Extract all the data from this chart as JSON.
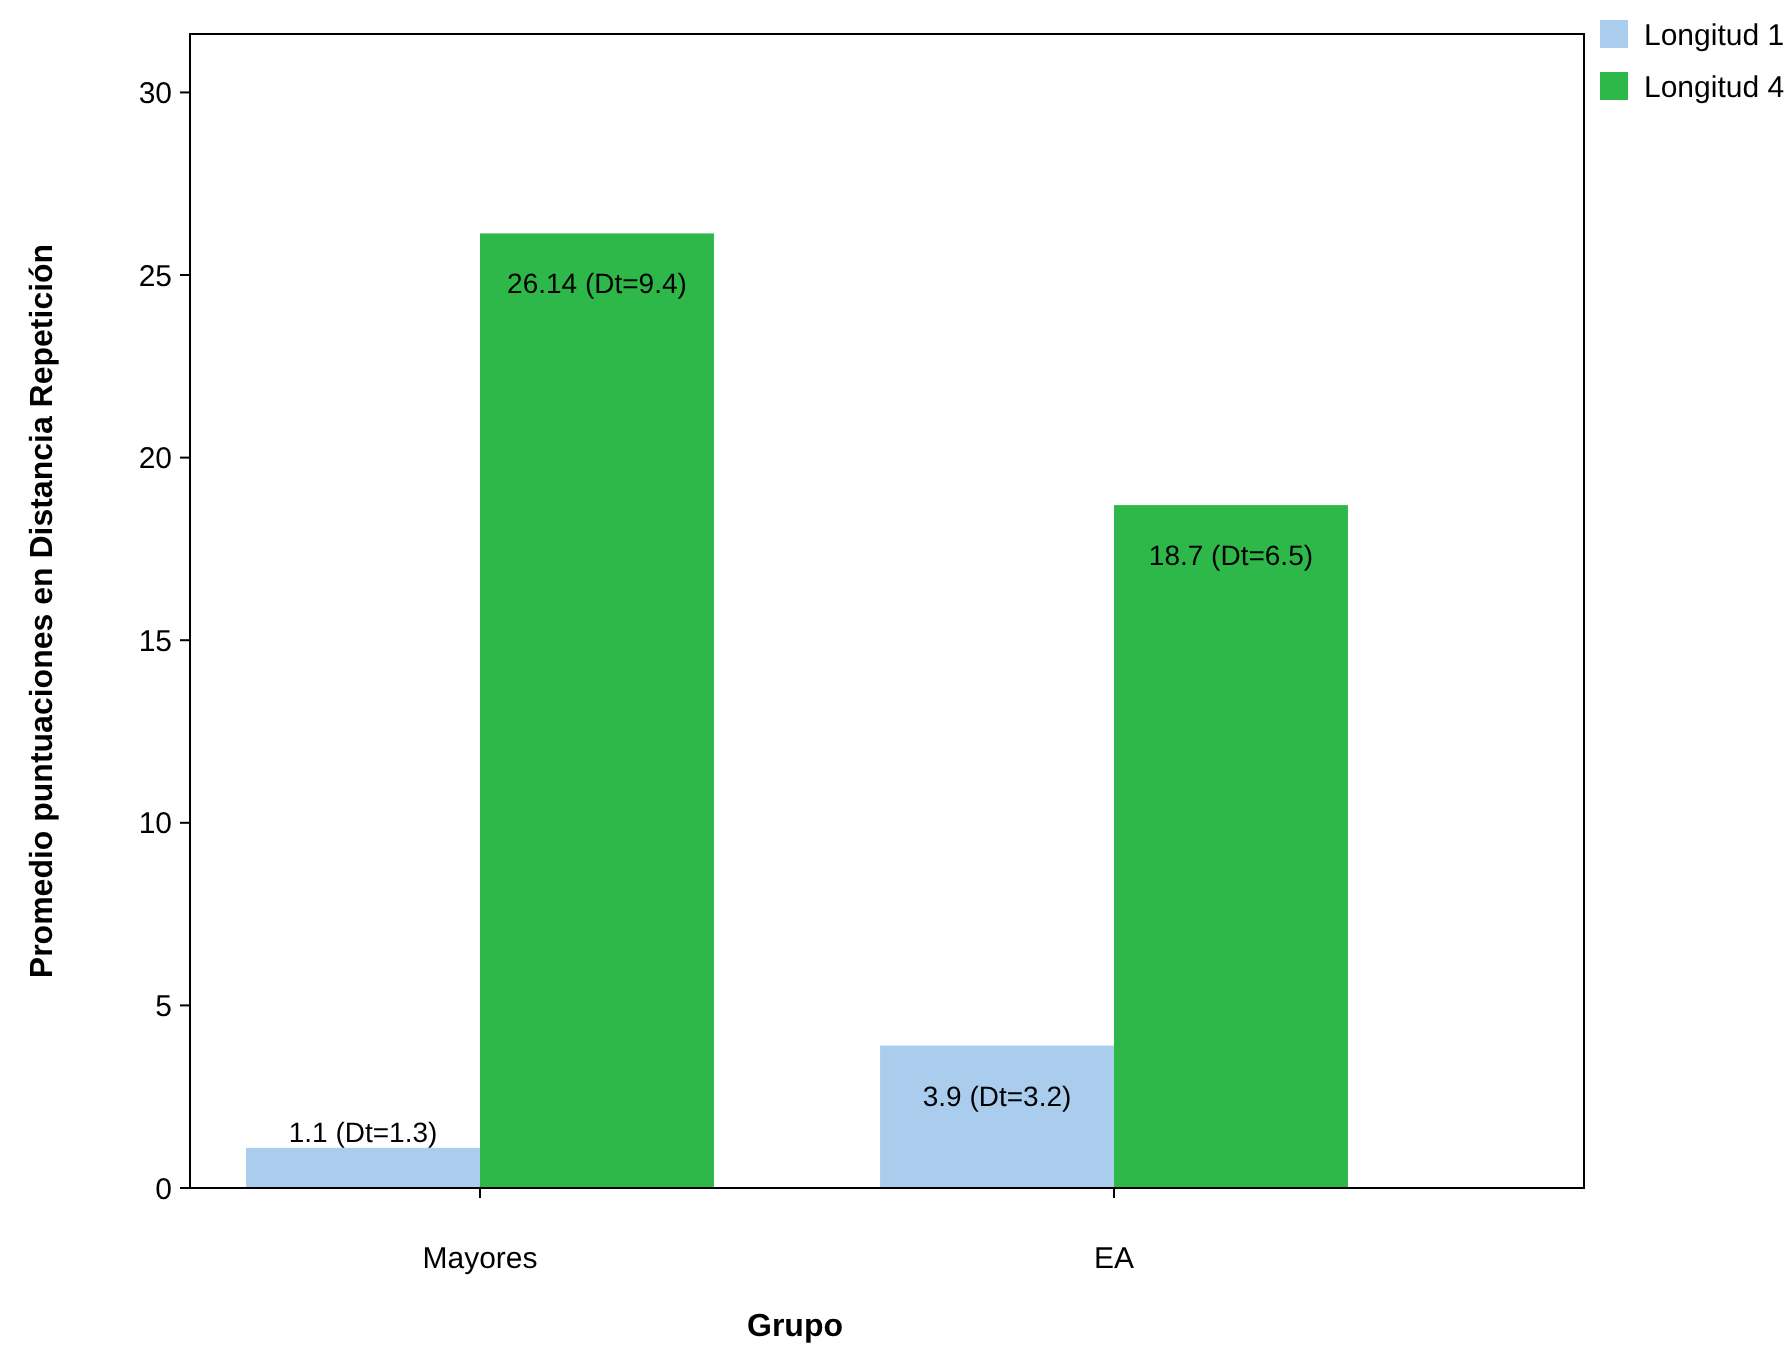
{
  "chart_data": {
    "type": "bar",
    "xlabel": "Grupo",
    "ylabel": "Promedio puntuaciones en Distancia Repetición",
    "categories": [
      "Mayores",
      "EA"
    ],
    "series": [
      {
        "name": "Longitud 1",
        "color": "#aacdee",
        "values": [
          1.1,
          3.9
        ],
        "value_labels": [
          "1.1 (Dt=1.3)",
          "3.9 (Dt=3.2)"
        ]
      },
      {
        "name": "Longitud 4",
        "color": "#2eb84a",
        "values": [
          26.14,
          18.7
        ],
        "value_labels": [
          "26.14 (Dt=9.4)",
          "18.7 (Dt=6.5)"
        ]
      }
    ],
    "ylim": [
      0,
      31.6
    ],
    "yticks": [
      0,
      5,
      10,
      15,
      20,
      25,
      30
    ],
    "legend": "top right"
  }
}
